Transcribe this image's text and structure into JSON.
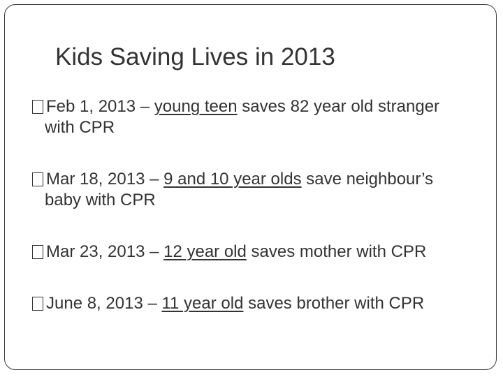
{
  "slide": {
    "title": "Kids Saving Lives in 2013",
    "bullets": [
      {
        "date_prefix": "Feb 1, 2013 – ",
        "highlight": "young teen",
        "rest_line1": " saves 82 year old stranger",
        "rest_line2": "with CPR"
      },
      {
        "date_prefix": "Mar 18, 2013 – ",
        "highlight": "9 and 10 year olds",
        "rest_line1": " save neighbour’s",
        "rest_line2": "baby with CPR"
      },
      {
        "date_prefix": "Mar 23, 2013 – ",
        "highlight": "12 year old",
        "rest_line1": " saves mother with CPR"
      },
      {
        "date_prefix": "June 8, 2013 – ",
        "highlight": "11 year old",
        "rest_line1": " saves brother with CPR"
      }
    ]
  }
}
